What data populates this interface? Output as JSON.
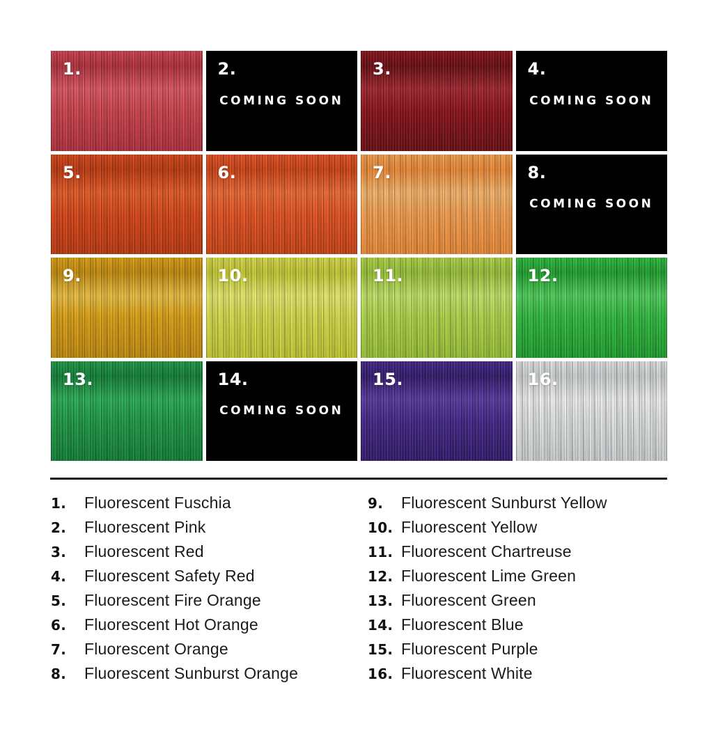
{
  "page": {
    "background": "#ffffff",
    "divider_color": "#141414",
    "text_color": "#1b1b1b"
  },
  "grid": {
    "coming_soon_label": "COMING SOON",
    "number_color": "#ffffff",
    "coming_soon_bg": "#000000",
    "tiles": [
      {
        "number": "1.",
        "name": "fluorescent-fuschia",
        "type": "swatch",
        "colors": {
          "dark": "#b5303d",
          "base": "#d2434e",
          "light": "#e05764"
        }
      },
      {
        "number": "2.",
        "name": "fluorescent-pink",
        "type": "coming-soon",
        "colors": {
          "base": "#000000"
        }
      },
      {
        "number": "3.",
        "name": "fluorescent-red",
        "type": "swatch",
        "colors": {
          "dark": "#6b0c12",
          "base": "#8e1119",
          "light": "#a52630"
        }
      },
      {
        "number": "4.",
        "name": "fluorescent-safety-red",
        "type": "coming-soon",
        "colors": {
          "base": "#000000"
        }
      },
      {
        "number": "5.",
        "name": "fluorescent-fire-orange",
        "type": "swatch",
        "colors": {
          "dark": "#c23a10",
          "base": "#dd4717",
          "light": "#ea5d26"
        }
      },
      {
        "number": "6.",
        "name": "fluorescent-hot-orange",
        "type": "swatch",
        "colors": {
          "dark": "#d04414",
          "base": "#e95322",
          "light": "#f26b35"
        }
      },
      {
        "number": "7.",
        "name": "fluorescent-orange",
        "type": "swatch",
        "colors": {
          "dark": "#f08c35",
          "base": "#f9a351",
          "light": "#fcb96f"
        }
      },
      {
        "number": "8.",
        "name": "fluorescent-sunburst-orange",
        "type": "coming-soon",
        "colors": {
          "base": "#000000"
        }
      },
      {
        "number": "9.",
        "name": "fluorescent-sunburst-yellow",
        "type": "swatch",
        "colors": {
          "dark": "#c68d0c",
          "base": "#e0a313",
          "light": "#f0c344"
        }
      },
      {
        "number": "10.",
        "name": "fluorescent-yellow",
        "type": "swatch",
        "colors": {
          "dark": "#c8cc32",
          "base": "#dbdf4b",
          "light": "#eaee6e"
        }
      },
      {
        "number": "11.",
        "name": "fluorescent-chartreuse",
        "type": "swatch",
        "colors": {
          "dark": "#9cc437",
          "base": "#b2d94a",
          "light": "#c6e96a"
        }
      },
      {
        "number": "12.",
        "name": "fluorescent-lime-green",
        "type": "swatch",
        "colors": {
          "dark": "#1fa32e",
          "base": "#2fbf3f",
          "light": "#52d45e"
        }
      },
      {
        "number": "13.",
        "name": "fluorescent-green",
        "type": "swatch",
        "colors": {
          "dark": "#128238",
          "base": "#1d9e47",
          "light": "#2bb257"
        }
      },
      {
        "number": "14.",
        "name": "fluorescent-blue",
        "type": "coming-soon",
        "colors": {
          "base": "#000000"
        }
      },
      {
        "number": "15.",
        "name": "fluorescent-purple",
        "type": "swatch",
        "colors": {
          "dark": "#331a6e",
          "base": "#44278c",
          "light": "#5a3ba3"
        }
      },
      {
        "number": "16.",
        "name": "fluorescent-white",
        "type": "swatch",
        "colors": {
          "dark": "#d2d5d6",
          "base": "#e6e8e9",
          "light": "#f4f5f5"
        }
      }
    ]
  },
  "legend": {
    "columns": [
      {
        "items": [
          {
            "number": "1.",
            "label": "Fluorescent Fuschia"
          },
          {
            "number": "2.",
            "label": "Fluorescent Pink"
          },
          {
            "number": "3.",
            "label": "Fluorescent Red"
          },
          {
            "number": "4.",
            "label": "Fluorescent Safety Red"
          },
          {
            "number": "5.",
            "label": "Fluorescent Fire Orange"
          },
          {
            "number": "6.",
            "label": "Fluorescent Hot Orange"
          },
          {
            "number": "7.",
            "label": "Fluorescent Orange"
          },
          {
            "number": "8.",
            "label": "Fluorescent Sunburst Orange"
          }
        ]
      },
      {
        "items": [
          {
            "number": "9.",
            "label": "Fluorescent Sunburst Yellow"
          },
          {
            "number": "10.",
            "label": "Fluorescent Yellow"
          },
          {
            "number": "11.",
            "label": "Fluorescent Chartreuse"
          },
          {
            "number": "12.",
            "label": "Fluorescent Lime Green"
          },
          {
            "number": "13.",
            "label": "Fluorescent Green"
          },
          {
            "number": "14.",
            "label": "Fluorescent Blue"
          },
          {
            "number": "15.",
            "label": "Fluorescent Purple"
          },
          {
            "number": "16.",
            "label": "Fluorescent White"
          }
        ]
      }
    ]
  }
}
